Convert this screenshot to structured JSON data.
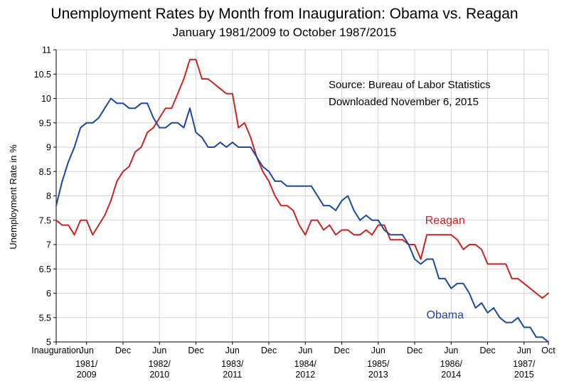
{
  "chart_data": {
    "type": "line",
    "title": "Unemployment Rates by Month from Inauguration:  Obama vs. Reagan",
    "subtitle": "January 1981/2009 to October 1987/2015",
    "ylabel": "Unemployment Rate in %",
    "xlabel": "",
    "ylim": [
      5,
      11
    ],
    "yticks": [
      "5",
      "5.5",
      "6",
      "6.5",
      "7",
      "7.5",
      "8",
      "8.5",
      "9",
      "9.5",
      "10",
      "10.5",
      "11"
    ],
    "xlim": [
      0,
      81
    ],
    "xticks": [
      {
        "m": 0,
        "label": "Inauguration",
        "year": []
      },
      {
        "m": 5,
        "label": "Jun",
        "year": [
          "1981/",
          "2009"
        ]
      },
      {
        "m": 11,
        "label": "Dec",
        "year": []
      },
      {
        "m": 17,
        "label": "Jun",
        "year": [
          "1982/",
          "2010"
        ]
      },
      {
        "m": 23,
        "label": "Dec",
        "year": []
      },
      {
        "m": 29,
        "label": "Jun",
        "year": [
          "1983/",
          "2011"
        ]
      },
      {
        "m": 35,
        "label": "Dec",
        "year": []
      },
      {
        "m": 41,
        "label": "Jun",
        "year": [
          "1984/",
          "2012"
        ]
      },
      {
        "m": 47,
        "label": "Dec",
        "year": []
      },
      {
        "m": 53,
        "label": "Jun",
        "year": [
          "1985/",
          "2013"
        ]
      },
      {
        "m": 59,
        "label": "Dec",
        "year": []
      },
      {
        "m": 65,
        "label": "Jun",
        "year": [
          "1986/",
          "2014"
        ]
      },
      {
        "m": 71,
        "label": "Dec",
        "year": []
      },
      {
        "m": 77,
        "label": "Jun",
        "year": [
          "1987/",
          "2015"
        ]
      },
      {
        "m": 81,
        "label": "Oct",
        "year": []
      }
    ],
    "annotations": [
      {
        "text": "Source:  Bureau of Labor Statistics"
      },
      {
        "text": "Downloaded November 6, 2015"
      }
    ],
    "series": [
      {
        "name": "Reagan",
        "color": "#cc2222",
        "label_at": [
          64,
          7.42
        ],
        "values": [
          7.5,
          7.4,
          7.4,
          7.2,
          7.5,
          7.5,
          7.2,
          7.4,
          7.6,
          7.9,
          8.3,
          8.5,
          8.6,
          8.9,
          9.0,
          9.3,
          9.4,
          9.6,
          9.8,
          9.8,
          10.1,
          10.4,
          10.8,
          10.8,
          10.4,
          10.4,
          10.3,
          10.2,
          10.1,
          10.1,
          9.4,
          9.5,
          9.2,
          8.8,
          8.5,
          8.3,
          8.0,
          7.8,
          7.8,
          7.7,
          7.4,
          7.2,
          7.5,
          7.5,
          7.3,
          7.4,
          7.2,
          7.3,
          7.3,
          7.2,
          7.2,
          7.3,
          7.2,
          7.4,
          7.4,
          7.1,
          7.1,
          7.1,
          7.0,
          7.0,
          6.7,
          7.2,
          7.2,
          7.2,
          7.2,
          7.2,
          7.1,
          6.9,
          7.0,
          7.0,
          6.9,
          6.6,
          6.6,
          6.6,
          6.6,
          6.3,
          6.3,
          6.2,
          6.1,
          6.0,
          5.9,
          6.0
        ]
      },
      {
        "name": "Obama",
        "color": "#1a47a0",
        "label_at": [
          64,
          5.48
        ],
        "values": [
          7.8,
          8.3,
          8.7,
          9.0,
          9.4,
          9.5,
          9.5,
          9.6,
          9.8,
          10.0,
          9.9,
          9.9,
          9.8,
          9.8,
          9.9,
          9.9,
          9.6,
          9.4,
          9.4,
          9.5,
          9.5,
          9.4,
          9.8,
          9.3,
          9.2,
          9.0,
          9.0,
          9.1,
          9.0,
          9.1,
          9.0,
          9.0,
          9.0,
          8.8,
          8.6,
          8.5,
          8.3,
          8.3,
          8.2,
          8.2,
          8.2,
          8.2,
          8.2,
          8.0,
          7.8,
          7.8,
          7.7,
          7.9,
          8.0,
          7.7,
          7.5,
          7.6,
          7.5,
          7.5,
          7.3,
          7.2,
          7.2,
          7.2,
          7.0,
          6.7,
          6.6,
          6.7,
          6.7,
          6.3,
          6.3,
          6.1,
          6.2,
          6.2,
          6.0,
          5.7,
          5.8,
          5.6,
          5.7,
          5.5,
          5.4,
          5.4,
          5.5,
          5.3,
          5.3,
          5.1,
          5.1,
          5.0
        ]
      }
    ]
  }
}
